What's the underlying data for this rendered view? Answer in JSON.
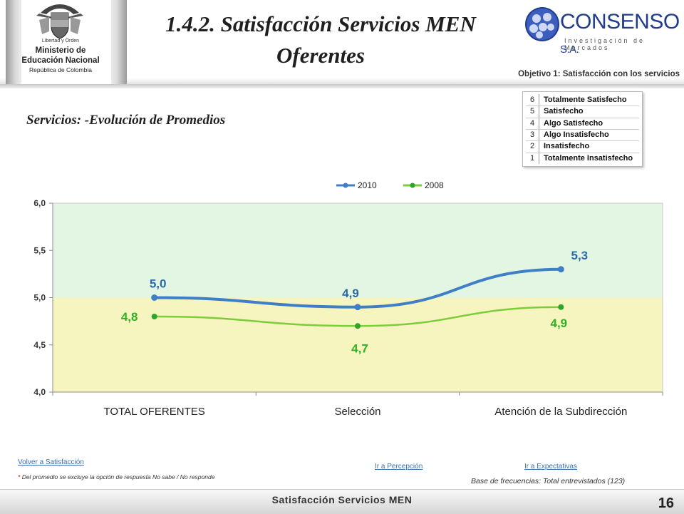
{
  "header": {
    "title": "1.4.2. Satisfacción Servicios MEN Oferentes",
    "ministry": {
      "motto": "Libertad y Orden",
      "name": "Ministerio de Educación Nacional",
      "country": "República de Colombia"
    },
    "logo": {
      "name": "CONSENSO",
      "suffix": "S.A.",
      "tagline": "Investigación de Mercados"
    },
    "objective": "Objetivo 1: Satisfacción con los servicios"
  },
  "subtitle": "Servicios: -Evolución de Promedios",
  "scale_legend": [
    {
      "num": "6",
      "label": "Totalmente Satisfecho"
    },
    {
      "num": "5",
      "label": "Satisfecho"
    },
    {
      "num": "4",
      "label": "Algo Satisfecho"
    },
    {
      "num": "3",
      "label": "Algo Insatisfecho"
    },
    {
      "num": "2",
      "label": "Insatisfecho"
    },
    {
      "num": "1",
      "label": "Totalmente Insatisfecho"
    }
  ],
  "chart_data": {
    "type": "line",
    "categories": [
      "TOTAL OFERENTES",
      "Selección",
      "Atención de la Subdirección"
    ],
    "series": [
      {
        "name": "2010",
        "values": [
          5.0,
          4.9,
          5.3
        ],
        "labels": [
          "5,0",
          "4,9",
          "5,3"
        ],
        "color": "#3f7fc7"
      },
      {
        "name": "2008",
        "values": [
          4.8,
          4.7,
          4.9
        ],
        "labels": [
          "4,8",
          "4,7",
          "4,9"
        ],
        "color": "#7ccc3c"
      }
    ],
    "ylim": [
      4.0,
      6.0
    ],
    "yticks": [
      4.0,
      4.5,
      5.0,
      5.5,
      6.0
    ],
    "ytick_labels": [
      "4,0",
      "4,5",
      "5,0",
      "5,5",
      "6,0"
    ],
    "bands": [
      {
        "from": 5.0,
        "to": 6.0,
        "color": "#e3f5e3"
      },
      {
        "from": 4.0,
        "to": 5.0,
        "color": "#f6f5bf"
      }
    ],
    "legend": "top-center",
    "label_colors": {
      "2010": "#2a6aa6",
      "2008": "#33b023"
    }
  },
  "links": {
    "back": "Volver a Satisfacción",
    "perception": "Ir a Percepción",
    "expectations": "Ir a Expectativas"
  },
  "notes": {
    "footnote_star": "*",
    "footnote": "Del promedio se excluye la opción de respuesta No sabe / No responde",
    "base": "Base de frecuencias: Total entrevistados (123)"
  },
  "footer": {
    "text": "Satisfacción Servicios MEN",
    "page": "16"
  }
}
